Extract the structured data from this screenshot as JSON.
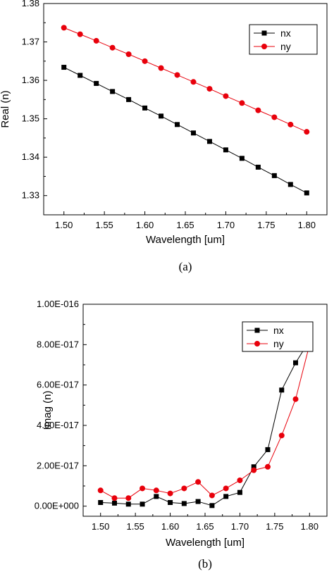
{
  "chart_data": [
    {
      "type": "line",
      "caption": "(a)",
      "xlabel": "Wavelength [um]",
      "ylabel": "Real (n)",
      "xlim": [
        1.475,
        1.825
      ],
      "ylim": [
        1.325,
        1.38
      ],
      "xticks": [
        "1.50",
        "1.55",
        "1.60",
        "1.65",
        "1.70",
        "1.75",
        "1.80"
      ],
      "yticks": [
        "1.33",
        "1.34",
        "1.35",
        "1.36",
        "1.37",
        "1.38"
      ],
      "legend_position": "top-right",
      "x": [
        1.5,
        1.52,
        1.54,
        1.56,
        1.58,
        1.6,
        1.62,
        1.64,
        1.66,
        1.68,
        1.7,
        1.72,
        1.74,
        1.76,
        1.78,
        1.8
      ],
      "series": [
        {
          "name": "nx",
          "color": "#000000",
          "marker": "square",
          "values": [
            1.3634,
            1.3613,
            1.3592,
            1.3571,
            1.355,
            1.3528,
            1.3507,
            1.3485,
            1.3463,
            1.3441,
            1.3419,
            1.3397,
            1.3374,
            1.3352,
            1.3329,
            1.3307
          ]
        },
        {
          "name": "ny",
          "color": "#e8000b",
          "marker": "circle",
          "values": [
            1.3737,
            1.372,
            1.3703,
            1.3685,
            1.3668,
            1.365,
            1.3632,
            1.3614,
            1.3596,
            1.3578,
            1.3559,
            1.3541,
            1.3522,
            1.3504,
            1.3485,
            1.3466
          ]
        }
      ]
    },
    {
      "type": "line",
      "caption": "(b)",
      "xlabel": "Wavelength [um]",
      "ylabel": "Imag (n)",
      "xlim": [
        1.475,
        1.825
      ],
      "ylim": [
        -5e-18,
        1e-16
      ],
      "xticks": [
        "1.50",
        "1.55",
        "1.60",
        "1.65",
        "1.70",
        "1.75",
        "1.80"
      ],
      "yticks": [
        "0.00E+000",
        "2.00E-017",
        "4.00E-017",
        "6.00E-017",
        "8.00E-017",
        "1.00E-016"
      ],
      "legend_position": "top-right",
      "x": [
        1.5,
        1.52,
        1.54,
        1.56,
        1.58,
        1.6,
        1.62,
        1.64,
        1.66,
        1.68,
        1.7,
        1.72,
        1.74,
        1.76,
        1.78,
        1.8
      ],
      "series": [
        {
          "name": "nx",
          "color": "#000000",
          "marker": "square",
          "values": [
            1.8e-18,
            1.5e-18,
            1e-18,
            1e-18,
            4.8e-18,
            1.8e-18,
            1.3e-18,
            2.3e-18,
            3e-19,
            4.8e-18,
            6.8e-18,
            1.95e-17,
            2.8e-17,
            5.75e-17,
            7.1e-17,
            8.2e-17
          ]
        },
        {
          "name": "ny",
          "color": "#e8000b",
          "marker": "circle",
          "values": [
            7.8e-18,
            4e-18,
            4e-18,
            8.8e-18,
            7.8e-18,
            6.3e-18,
            8.8e-18,
            1.2e-17,
            5.3e-18,
            8.8e-18,
            1.28e-17,
            1.78e-17,
            1.95e-17,
            3.5e-17,
            5.3e-17,
            8e-17
          ]
        }
      ]
    }
  ]
}
